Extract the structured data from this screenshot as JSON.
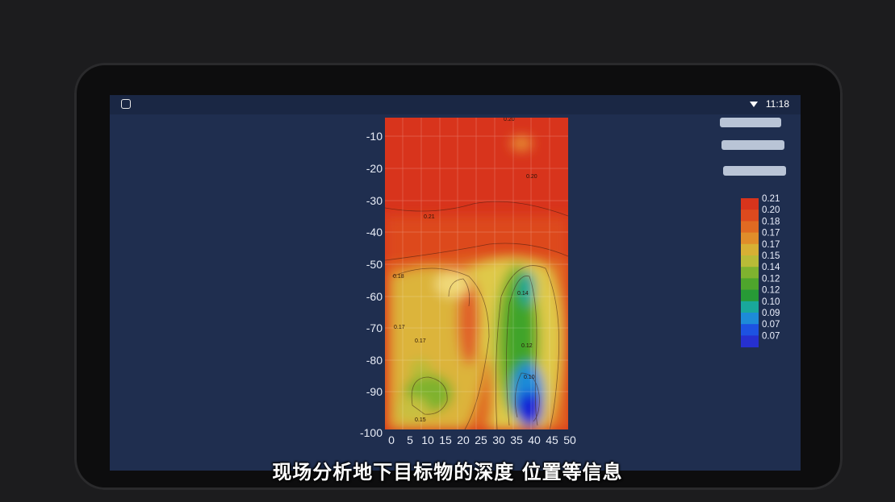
{
  "statusbar": {
    "time": "11:18"
  },
  "caption": "现场分析地下目标物的深度 位置等信息",
  "colors": {
    "screen_bg": "#1f2e4f",
    "high": "#d23a1e",
    "mid": "#dfc94a",
    "low_green": "#2c9b2a",
    "low_blue": "#1522d6"
  },
  "sidebar": {
    "buttons": [
      "",
      "",
      ""
    ]
  },
  "chart_data": {
    "type": "heatmap",
    "x_ticks": [
      "0",
      "5",
      "10",
      "15",
      "20",
      "25",
      "30",
      "35",
      "40",
      "45",
      "50"
    ],
    "y_ticks": [
      "-10",
      "-20",
      "-30",
      "-40",
      "-50",
      "-60",
      "-70",
      "-80",
      "-90",
      "-100"
    ],
    "xlim": [
      0,
      50
    ],
    "ylim": [
      -100,
      -5
    ],
    "grid": true,
    "legend_position": "right",
    "legend_values": [
      "0.21",
      "0.20",
      "0.18",
      "0.17",
      "0.17",
      "0.15",
      "0.14",
      "0.12",
      "0.12",
      "0.10",
      "0.09",
      "0.07",
      "0.07"
    ],
    "legend_colors": [
      "#d8341c",
      "#dd4a1e",
      "#e06a22",
      "#e08d2a",
      "#d7b034",
      "#b9bb37",
      "#7fb22f",
      "#4ea52c",
      "#279a36",
      "#19a89b",
      "#1d8bd8",
      "#1d52e2",
      "#2630d0"
    ],
    "contour_labels": [
      "0.21",
      "0.20",
      "0.18",
      "0.17",
      "0.15",
      "0.14",
      "0.12",
      "0.10"
    ]
  }
}
